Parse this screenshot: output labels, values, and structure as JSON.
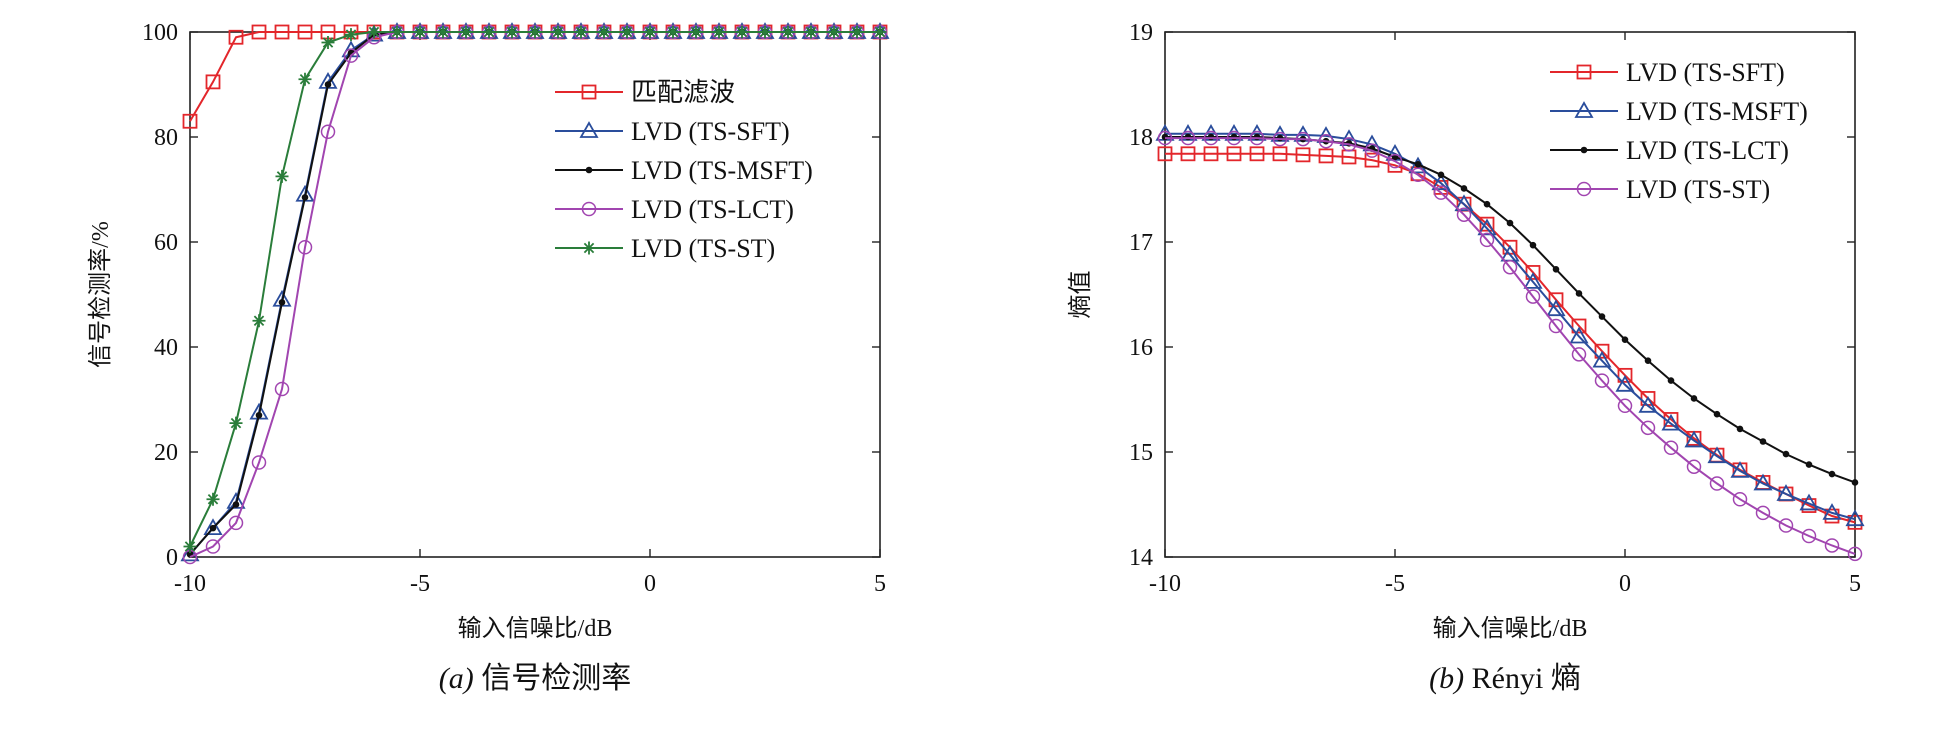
{
  "chart_data": [
    {
      "type": "line",
      "caption_prefix": "(a)",
      "caption_text": "信号检测率",
      "xlabel": "输入信噪比/dB",
      "ylabel": "信号检测率/%",
      "xlim": [
        -10,
        5
      ],
      "ylim": [
        0,
        100
      ],
      "xticks": [
        -10,
        -5,
        0,
        5
      ],
      "yticks": [
        0,
        20,
        40,
        60,
        80,
        100
      ],
      "xtick_labels": [
        "-10",
        "-5",
        "0",
        "5"
      ],
      "ytick_labels": [
        "0",
        "20",
        "40",
        "60",
        "80",
        "100"
      ],
      "legend_position": "top-right",
      "series": [
        {
          "name": "匹配滤波",
          "color": "#e3262b",
          "marker": "square",
          "x": [
            -10,
            -9.5,
            -9,
            -8.5,
            -8,
            -7.5,
            -7,
            -6.5,
            -6,
            -5.5,
            -5,
            -4.5,
            -4,
            -3.5,
            -3,
            -2.5,
            -2,
            -1.5,
            -1,
            -0.5,
            0,
            0.5,
            1,
            1.5,
            2,
            2.5,
            3,
            3.5,
            4,
            4.5,
            5
          ],
          "y": [
            83,
            90.5,
            99,
            100,
            100,
            100,
            100,
            100,
            100,
            100,
            100,
            100,
            100,
            100,
            100,
            100,
            100,
            100,
            100,
            100,
            100,
            100,
            100,
            100,
            100,
            100,
            100,
            100,
            100,
            100,
            100
          ]
        },
        {
          "name": "LVD (TS-SFT)",
          "color": "#2a4d9c",
          "marker": "triangle",
          "x": [
            -10,
            -9.5,
            -9,
            -8.5,
            -8,
            -7.5,
            -7,
            -6.5,
            -6,
            -5.5,
            -5,
            -4.5,
            -4,
            -3.5,
            -3,
            -2.5,
            -2,
            -1.5,
            -1,
            -0.5,
            0,
            0.5,
            1,
            1.5,
            2,
            2.5,
            3,
            3.5,
            4,
            4.5,
            5
          ],
          "y": [
            0.5,
            5.5,
            10.5,
            27.5,
            49,
            69,
            90.5,
            96.5,
            99.5,
            100,
            100,
            100,
            100,
            100,
            100,
            100,
            100,
            100,
            100,
            100,
            100,
            100,
            100,
            100,
            100,
            100,
            100,
            100,
            100,
            100,
            100
          ]
        },
        {
          "name": "LVD (TS-MSFT)",
          "color": "#111111",
          "marker": "dot",
          "x": [
            -10,
            -9.5,
            -9,
            -8.5,
            -8,
            -7.5,
            -7,
            -6.5,
            -6,
            -5.5,
            -5,
            -4.5,
            -4,
            -3.5,
            -3,
            -2.5,
            -2,
            -1.5,
            -1,
            -0.5,
            0,
            0.5,
            1,
            1.5,
            2,
            2.5,
            3,
            3.5,
            4,
            4.5,
            5
          ],
          "y": [
            0.5,
            5.5,
            10,
            27,
            48.5,
            68.5,
            90,
            96,
            99.5,
            100,
            100,
            100,
            100,
            100,
            100,
            100,
            100,
            100,
            100,
            100,
            100,
            100,
            100,
            100,
            100,
            100,
            100,
            100,
            100,
            100,
            100
          ]
        },
        {
          "name": "LVD (TS-LCT)",
          "color": "#a145b0",
          "marker": "circle",
          "x": [
            -10,
            -9.5,
            -9,
            -8.5,
            -8,
            -7.5,
            -7,
            -6.5,
            -6,
            -5.5,
            -5,
            -4.5,
            -4,
            -3.5,
            -3,
            -2.5,
            -2,
            -1.5,
            -1,
            -0.5,
            0,
            0.5,
            1,
            1.5,
            2,
            2.5,
            3,
            3.5,
            4,
            4.5,
            5
          ],
          "y": [
            0,
            2,
            6.5,
            18,
            32,
            59,
            81,
            95.5,
            99,
            100,
            100,
            100,
            100,
            100,
            100,
            100,
            100,
            100,
            100,
            100,
            100,
            100,
            100,
            100,
            100,
            100,
            100,
            100,
            100,
            100,
            100
          ]
        },
        {
          "name": "LVD (TS-ST)",
          "color": "#2a7d3a",
          "marker": "star",
          "x": [
            -10,
            -9.5,
            -9,
            -8.5,
            -8,
            -7.5,
            -7,
            -6.5,
            -6,
            -5.5,
            -5,
            -4.5,
            -4,
            -3.5,
            -3,
            -2.5,
            -2,
            -1.5,
            -1,
            -0.5,
            0,
            0.5,
            1,
            1.5,
            2,
            2.5,
            3,
            3.5,
            4,
            4.5,
            5
          ],
          "y": [
            2,
            11,
            25.5,
            45,
            72.5,
            91,
            98,
            99.5,
            100,
            100,
            100,
            100,
            100,
            100,
            100,
            100,
            100,
            100,
            100,
            100,
            100,
            100,
            100,
            100,
            100,
            100,
            100,
            100,
            100,
            100,
            100
          ]
        }
      ]
    },
    {
      "type": "line",
      "caption_prefix": "(b)",
      "caption_text": "Rényi 熵",
      "xlabel": "输入信噪比/dB",
      "ylabel": "熵值",
      "xlim": [
        -10,
        5
      ],
      "ylim": [
        14,
        19
      ],
      "xticks": [
        -10,
        -5,
        0,
        5
      ],
      "yticks": [
        14,
        15,
        16,
        17,
        18,
        19
      ],
      "xtick_labels": [
        "-10",
        "-5",
        "0",
        "5"
      ],
      "ytick_labels": [
        "14",
        "15",
        "16",
        "17",
        "18",
        "19"
      ],
      "legend_position": "top-right",
      "series": [
        {
          "name": "LVD (TS-SFT)",
          "color": "#e3262b",
          "marker": "square",
          "x": [
            -10,
            -9.5,
            -9,
            -8.5,
            -8,
            -7.5,
            -7,
            -6.5,
            -6,
            -5.5,
            -5,
            -4.5,
            -4,
            -3.5,
            -3,
            -2.5,
            -2,
            -1.5,
            -1,
            -0.5,
            0,
            0.5,
            1,
            1.5,
            2,
            2.5,
            3,
            3.5,
            4,
            4.5,
            5
          ],
          "y": [
            17.84,
            17.84,
            17.84,
            17.84,
            17.84,
            17.84,
            17.83,
            17.82,
            17.81,
            17.78,
            17.73,
            17.65,
            17.52,
            17.36,
            17.17,
            16.95,
            16.71,
            16.45,
            16.2,
            15.96,
            15.73,
            15.51,
            15.31,
            15.13,
            14.97,
            14.83,
            14.71,
            14.6,
            14.49,
            14.39,
            14.33
          ]
        },
        {
          "name": "LVD (TS-MSFT)",
          "color": "#2a4d9c",
          "marker": "triangle",
          "x": [
            -10,
            -9.5,
            -9,
            -8.5,
            -8,
            -7.5,
            -7,
            -6.5,
            -6,
            -5.5,
            -5,
            -4.5,
            -4,
            -3.5,
            -3,
            -2.5,
            -2,
            -1.5,
            -1,
            -0.5,
            0,
            0.5,
            1,
            1.5,
            2,
            2.5,
            3,
            3.5,
            4,
            4.5,
            5
          ],
          "y": [
            18.03,
            18.03,
            18.03,
            18.03,
            18.03,
            18.02,
            18.02,
            18.01,
            17.98,
            17.93,
            17.84,
            17.72,
            17.56,
            17.36,
            17.13,
            16.88,
            16.62,
            16.36,
            16.1,
            15.87,
            15.64,
            15.44,
            15.27,
            15.11,
            14.96,
            14.82,
            14.7,
            14.6,
            14.51,
            14.42,
            14.36
          ]
        },
        {
          "name": "LVD (TS-LCT)",
          "color": "#111111",
          "marker": "dot",
          "x": [
            -10,
            -9.5,
            -9,
            -8.5,
            -8,
            -7.5,
            -7,
            -6.5,
            -6,
            -5.5,
            -5,
            -4.5,
            -4,
            -3.5,
            -3,
            -2.5,
            -2,
            -1.5,
            -1,
            -0.5,
            0,
            0.5,
            1,
            1.5,
            2,
            2.5,
            3,
            3.5,
            4,
            4.5,
            5
          ],
          "y": [
            18.0,
            18.0,
            18.0,
            18.0,
            18.0,
            17.99,
            17.98,
            17.96,
            17.94,
            17.89,
            17.81,
            17.74,
            17.64,
            17.51,
            17.36,
            17.18,
            16.97,
            16.74,
            16.51,
            16.29,
            16.07,
            15.87,
            15.68,
            15.51,
            15.36,
            15.22,
            15.1,
            14.98,
            14.88,
            14.79,
            14.71
          ]
        },
        {
          "name": "LVD (TS-ST)",
          "color": "#a145b0",
          "marker": "circle",
          "x": [
            -10,
            -9.5,
            -9,
            -8.5,
            -8,
            -7.5,
            -7,
            -6.5,
            -6,
            -5.5,
            -5,
            -4.5,
            -4,
            -3.5,
            -3,
            -2.5,
            -2,
            -1.5,
            -1,
            -0.5,
            0,
            0.5,
            1,
            1.5,
            2,
            2.5,
            3,
            3.5,
            4,
            4.5,
            5
          ],
          "y": [
            17.99,
            17.99,
            17.99,
            17.99,
            17.99,
            17.98,
            17.98,
            17.96,
            17.93,
            17.87,
            17.77,
            17.64,
            17.47,
            17.26,
            17.02,
            16.76,
            16.48,
            16.2,
            15.93,
            15.68,
            15.44,
            15.23,
            15.04,
            14.86,
            14.7,
            14.55,
            14.42,
            14.3,
            14.2,
            14.11,
            14.03
          ]
        }
      ]
    }
  ]
}
